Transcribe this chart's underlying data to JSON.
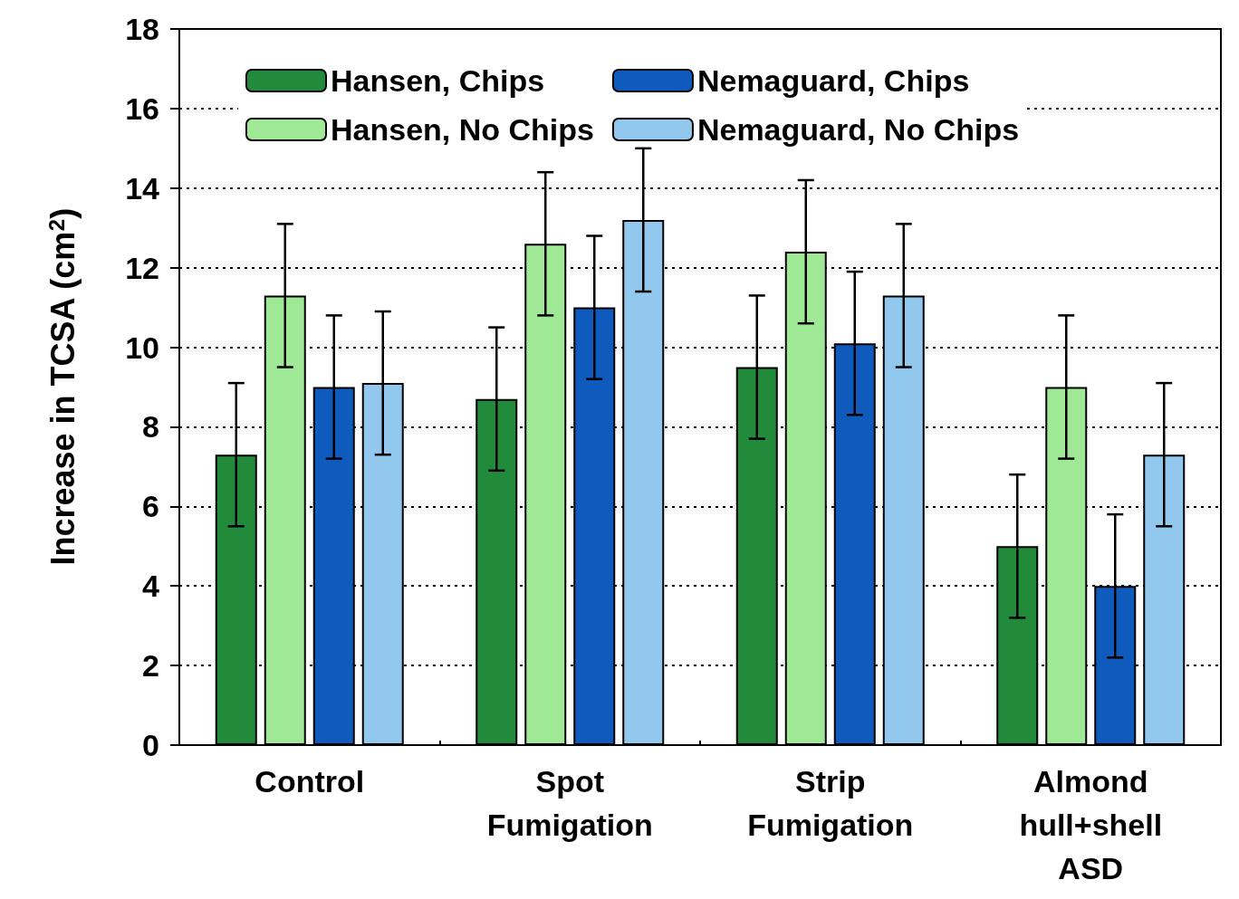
{
  "chart_data": {
    "type": "bar",
    "ylabel": "Increase in TCSA (cm$^{2}$)",
    "categories": [
      "Control",
      "Spot\nFumigation",
      "Strip\nFumigation",
      "Almond\nhull+shell\nASD"
    ],
    "series": [
      {
        "name": "Hansen, Chips",
        "color": "#228b3b",
        "values": [
          7.3,
          8.7,
          9.5,
          5.0
        ],
        "errors": [
          1.8,
          1.8,
          1.8,
          1.8
        ]
      },
      {
        "name": "Hansen, No Chips",
        "color": "#9ee896",
        "values": [
          11.3,
          12.6,
          12.4,
          9.0
        ],
        "errors": [
          1.8,
          1.8,
          1.8,
          1.8
        ]
      },
      {
        "name": "Nemaguard, Chips",
        "color": "#0f5bbd",
        "values": [
          9.0,
          11.0,
          10.1,
          4.0
        ],
        "errors": [
          1.8,
          1.8,
          1.8,
          1.8
        ]
      },
      {
        "name": "Nemaguard, No Chips",
        "color": "#93c8ee",
        "values": [
          9.1,
          13.2,
          11.3,
          7.3
        ],
        "errors": [
          1.8,
          1.8,
          1.8,
          1.8
        ]
      }
    ],
    "ylim": [
      0,
      18
    ],
    "yticks": [
      0,
      2,
      4,
      6,
      8,
      10,
      12,
      14,
      16,
      18
    ],
    "grid": "y",
    "legend": "top"
  }
}
